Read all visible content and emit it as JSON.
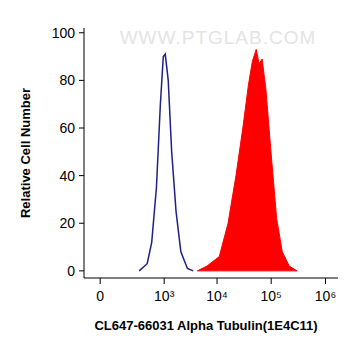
{
  "chart_data": {
    "type": "area",
    "x_label": "CL647-66031 Alpha Tubulin(1E4C11)",
    "y_label": "Relative Cell Number",
    "annotations": [
      "WWW.PTGLAB.COM"
    ],
    "log": "x",
    "xlim": [
      -70,
      1700000
    ],
    "xticks": [
      {
        "value": 0,
        "label": "0"
      },
      {
        "value": 1000,
        "label": "10³"
      },
      {
        "value": 10000,
        "label": "10⁴"
      },
      {
        "value": 100000,
        "label": "10⁵"
      },
      {
        "value": 1000000,
        "label": "10⁶"
      }
    ],
    "ylim": [
      -3,
      102
    ],
    "yticks": [
      0,
      20,
      40,
      60,
      80,
      100
    ],
    "grid": false,
    "series": [
      {
        "type": "line",
        "color": "#1f1f8a",
        "x": [
          300,
          450,
          560,
          700,
          840,
          960,
          1050,
          1200,
          1400,
          1700,
          2100,
          2800,
          3600
        ],
        "values": [
          0,
          3,
          12,
          35,
          70,
          90,
          91,
          80,
          50,
          25,
          8,
          1,
          0
        ]
      },
      {
        "type": "area",
        "color": "#ff0000",
        "x": [
          4300,
          6500,
          11000,
          16000,
          22400,
          30000,
          38000,
          45000,
          53000,
          60000,
          68000,
          80000,
          99000,
          126000,
          160000,
          215000,
          300000
        ],
        "values": [
          0,
          2,
          6,
          20,
          40,
          60,
          78,
          88,
          93,
          87,
          89,
          76,
          50,
          22,
          8,
          2,
          0
        ]
      }
    ]
  }
}
